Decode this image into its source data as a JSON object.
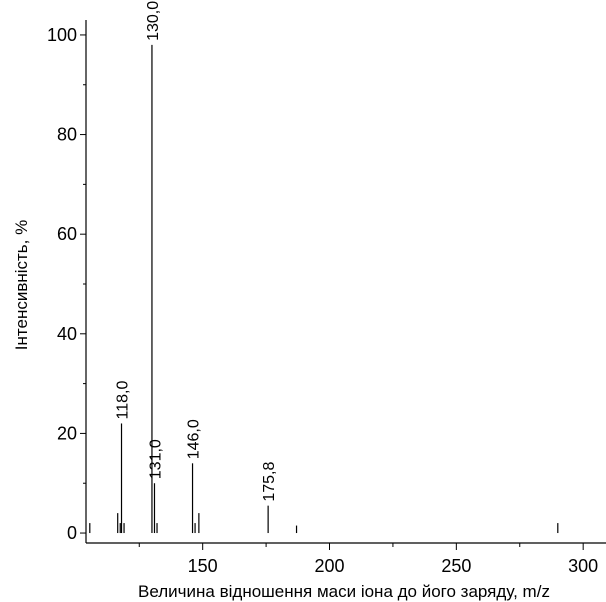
{
  "chart_data": {
    "type": "bar",
    "title": "",
    "xlabel": "Величина відношення маси іона до його заряду, m/z",
    "ylabel": "Інтенсивність, %",
    "xlim": [
      104,
      309
    ],
    "ylim": [
      -2,
      103
    ],
    "x_ticks": [
      "150",
      "200",
      "250",
      "300"
    ],
    "y_ticks": [
      "0",
      "20",
      "40",
      "60",
      "80",
      "100"
    ],
    "grid": false,
    "peaks": [
      {
        "x": 105.5,
        "y": 2,
        "label": ""
      },
      {
        "x": 116.5,
        "y": 4,
        "label": ""
      },
      {
        "x": 117.5,
        "y": 2,
        "label": ""
      },
      {
        "x": 118.0,
        "y": 22,
        "label": "118,0"
      },
      {
        "x": 119.0,
        "y": 2,
        "label": ""
      },
      {
        "x": 130.0,
        "y": 98,
        "label": "130,0"
      },
      {
        "x": 131.0,
        "y": 10,
        "label": "131,0"
      },
      {
        "x": 132.0,
        "y": 2,
        "label": ""
      },
      {
        "x": 146.0,
        "y": 14,
        "label": "146,0"
      },
      {
        "x": 147.0,
        "y": 2,
        "label": ""
      },
      {
        "x": 148.5,
        "y": 4,
        "label": ""
      },
      {
        "x": 175.8,
        "y": 5.5,
        "label": "175,8"
      },
      {
        "x": 187.0,
        "y": 1.5,
        "label": ""
      },
      {
        "x": 290.0,
        "y": 2,
        "label": ""
      }
    ]
  }
}
